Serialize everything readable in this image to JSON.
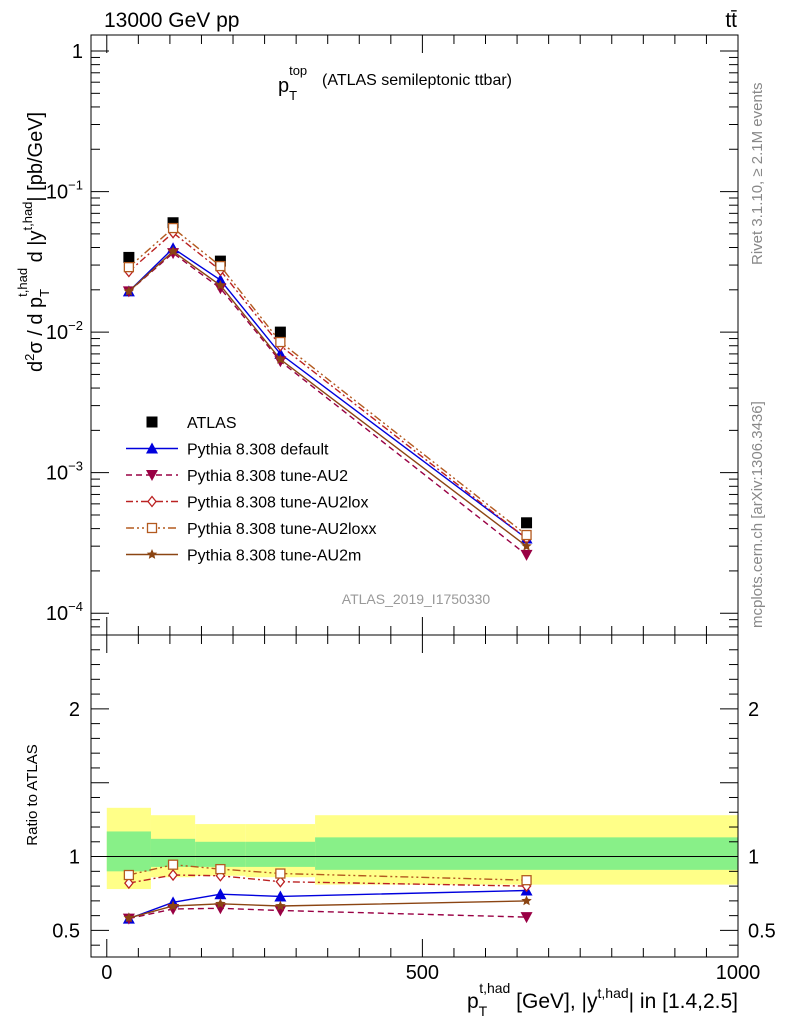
{
  "header": {
    "left": "13000 GeV pp",
    "right": "tt̄"
  },
  "side": {
    "right_upper": "Rivet 3.1.10, ≥ 2.1M events",
    "right_lower": "mcplots.cern.ch [arXiv:1306.3436]"
  },
  "chart_data": [
    {
      "type": "line",
      "panel": "main",
      "title_main": "p",
      "title_sub": "T",
      "title_sup": "top",
      "title_rest": "(ATLAS semileptonic ttbar)",
      "watermark": "ATLAS_2019_I1750330",
      "ylabel": "d²σ / d p_T^{t,had} d |y^{t,had}| [pb/GeV]",
      "yscale": "log",
      "ylim": [
        7e-05,
        1.3
      ],
      "xlim": [
        -25,
        1000
      ],
      "yticks": [
        {
          "v": 1,
          "m": "1",
          "e": ""
        },
        {
          "v": 0.1,
          "m": "10",
          "e": "−1"
        },
        {
          "v": 0.01,
          "m": "10",
          "e": "−2"
        },
        {
          "v": 0.001,
          "m": "10",
          "e": "−3"
        },
        {
          "v": 0.0001,
          "m": "10",
          "e": "−4"
        }
      ],
      "legend_position": "center-left",
      "x": [
        35,
        105,
        180,
        275,
        665
      ],
      "series": [
        {
          "name": "ATLAS",
          "style": "data",
          "color": "#000000",
          "marker": "square",
          "values": [
            0.034,
            0.06,
            0.032,
            0.01,
            0.00044
          ]
        },
        {
          "name": "Pythia 8.308 default",
          "style": "solid",
          "color": "#0000dd",
          "marker": "triangle-up",
          "values": [
            0.0195,
            0.0395,
            0.0235,
            0.007,
            0.00034
          ]
        },
        {
          "name": "Pythia 8.308 tune-AU2",
          "style": "dashed",
          "color": "#990044",
          "marker": "triangle-down",
          "values": [
            0.0195,
            0.0365,
            0.0205,
            0.0062,
            0.00026
          ]
        },
        {
          "name": "Pythia 8.308 tune-AU2lox",
          "style": "dotdash",
          "color": "#bb2222",
          "marker": "diamond",
          "values": [
            0.027,
            0.051,
            0.0275,
            0.008,
            0.00034
          ]
        },
        {
          "name": "Pythia 8.308 tune-AU2loxx",
          "style": "dashdotdot",
          "color": "#b35a1f",
          "marker": "square-open",
          "values": [
            0.029,
            0.055,
            0.0295,
            0.0085,
            0.00036
          ]
        },
        {
          "name": "Pythia 8.308 tune-AU2m",
          "style": "solid",
          "color": "#8b4513",
          "marker": "star",
          "values": [
            0.0195,
            0.0375,
            0.0215,
            0.0064,
            0.0003
          ]
        }
      ]
    },
    {
      "type": "line",
      "panel": "ratio",
      "ylabel": "Ratio to ATLAS",
      "xlabel_main": "p",
      "xlabel_sub": "T",
      "xlabel_sup": "t,had",
      "xlabel_mid": " [GeV], |y",
      "xlabel_sup2": "t,had",
      "xlabel_rest": "| in [1.4,2.5]",
      "ylim": [
        0.32,
        2.5
      ],
      "xlim": [
        -25,
        1000
      ],
      "yticks": [
        {
          "v": 2,
          "label": "2"
        },
        {
          "v": 1,
          "label": "1"
        },
        {
          "v": 0.5,
          "label": "0.5"
        }
      ],
      "xticks": [
        {
          "v": 0,
          "label": "0"
        },
        {
          "v": 500,
          "label": "500"
        },
        {
          "v": 1000,
          "label": "1000"
        }
      ],
      "bands": [
        {
          "x0": 0,
          "x1": 70,
          "stat": [
            0.9,
            1.17
          ],
          "tot": [
            0.78,
            1.33
          ]
        },
        {
          "x0": 70,
          "x1": 140,
          "stat": [
            0.93,
            1.12
          ],
          "tot": [
            0.86,
            1.28
          ]
        },
        {
          "x0": 140,
          "x1": 220,
          "stat": [
            0.93,
            1.1
          ],
          "tot": [
            0.87,
            1.22
          ]
        },
        {
          "x0": 220,
          "x1": 330,
          "stat": [
            0.93,
            1.1
          ],
          "tot": [
            0.86,
            1.22
          ]
        },
        {
          "x0": 330,
          "x1": 1000,
          "stat": [
            0.91,
            1.13
          ],
          "tot": [
            0.81,
            1.28
          ]
        }
      ],
      "x": [
        35,
        105,
        180,
        275,
        665
      ],
      "series": [
        {
          "name": "Pythia 8.308 default",
          "style": "solid",
          "color": "#0000dd",
          "marker": "triangle-up",
          "values": [
            0.58,
            0.69,
            0.745,
            0.73,
            0.77
          ]
        },
        {
          "name": "Pythia 8.308 tune-AU2",
          "style": "dashed",
          "color": "#990044",
          "marker": "triangle-down",
          "values": [
            0.58,
            0.645,
            0.65,
            0.635,
            0.59
          ]
        },
        {
          "name": "Pythia 8.308 tune-AU2lox",
          "style": "dotdash",
          "color": "#bb2222",
          "marker": "diamond",
          "values": [
            0.82,
            0.875,
            0.87,
            0.83,
            0.8
          ]
        },
        {
          "name": "Pythia 8.308 tune-AU2loxx",
          "style": "dashdotdot",
          "color": "#b35a1f",
          "marker": "square-open",
          "values": [
            0.875,
            0.945,
            0.915,
            0.885,
            0.84
          ]
        },
        {
          "name": "Pythia 8.308 tune-AU2m",
          "style": "solid",
          "color": "#8b4513",
          "marker": "star",
          "values": [
            0.585,
            0.665,
            0.68,
            0.665,
            0.7
          ]
        }
      ]
    }
  ]
}
